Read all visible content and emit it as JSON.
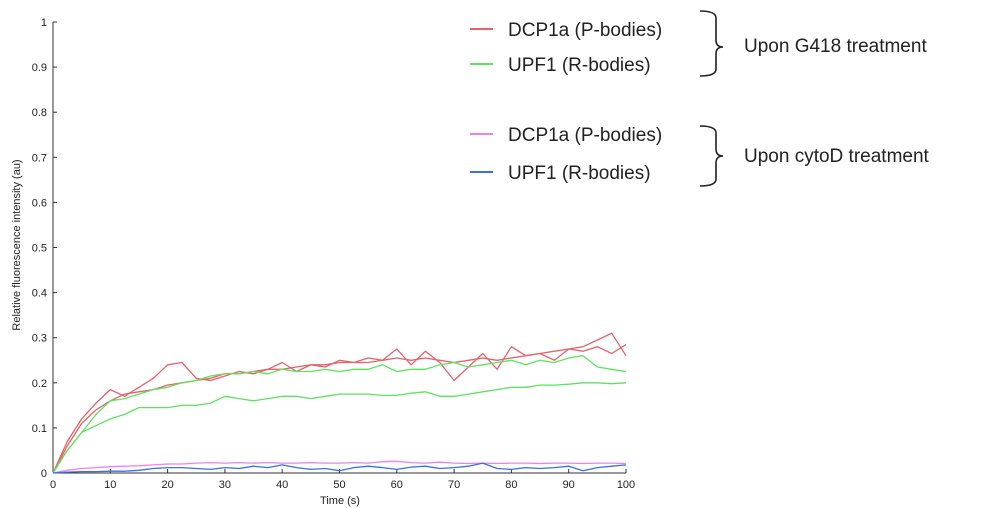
{
  "chart_data": {
    "type": "line",
    "xlabel": "Time (s)",
    "ylabel": "Relative fluorescence intensity (au)",
    "xlim": [
      0,
      100
    ],
    "ylim": [
      0,
      1
    ],
    "xticks": [
      "0",
      "10",
      "20",
      "30",
      "40",
      "50",
      "60",
      "70",
      "80",
      "90",
      "100"
    ],
    "yticks": [
      "0",
      "0.1",
      "0.2",
      "0.3",
      "0.4",
      "0.5",
      "0.6",
      "0.7",
      "0.8",
      "0.9",
      "1"
    ],
    "x": [
      0,
      2.5,
      5,
      7.5,
      10,
      12.5,
      15,
      17.5,
      20,
      22.5,
      25,
      27.5,
      30,
      32.5,
      35,
      37.5,
      40,
      42.5,
      45,
      47.5,
      50,
      52.5,
      55,
      57.5,
      60,
      62.5,
      65,
      67.5,
      70,
      72.5,
      75,
      77.5,
      80,
      82.5,
      85,
      87.5,
      90,
      92.5,
      95,
      97.5,
      100
    ],
    "grid": false,
    "legend_position": "top-right",
    "series": [
      {
        "name": "DCP1a (P-bodies)",
        "group": "g418",
        "color": "#e8616a",
        "values": [
          0,
          0.07,
          0.12,
          0.155,
          0.185,
          0.17,
          0.19,
          0.21,
          0.24,
          0.245,
          0.21,
          0.205,
          0.215,
          0.225,
          0.22,
          0.23,
          0.245,
          0.225,
          0.24,
          0.235,
          0.25,
          0.245,
          0.255,
          0.25,
          0.275,
          0.24,
          0.27,
          0.245,
          0.205,
          0.235,
          0.265,
          0.23,
          0.28,
          0.26,
          0.265,
          0.25,
          0.275,
          0.27,
          0.28,
          0.265,
          0.285
        ]
      },
      {
        "name": "",
        "group": "g418",
        "color": "#e8616a",
        "values": [
          0,
          0.06,
          0.11,
          0.14,
          0.16,
          0.175,
          0.18,
          0.185,
          0.195,
          0.2,
          0.205,
          0.21,
          0.22,
          0.22,
          0.225,
          0.23,
          0.23,
          0.235,
          0.24,
          0.24,
          0.245,
          0.245,
          0.245,
          0.25,
          0.255,
          0.25,
          0.255,
          0.25,
          0.245,
          0.25,
          0.255,
          0.25,
          0.255,
          0.26,
          0.265,
          0.27,
          0.275,
          0.28,
          0.295,
          0.31,
          0.26
        ]
      },
      {
        "name": "UPF1 (R-bodies)",
        "group": "g418",
        "color": "#5ee35e",
        "values": [
          0,
          0.05,
          0.09,
          0.13,
          0.16,
          0.165,
          0.175,
          0.185,
          0.19,
          0.2,
          0.205,
          0.215,
          0.22,
          0.22,
          0.225,
          0.22,
          0.23,
          0.225,
          0.225,
          0.23,
          0.225,
          0.23,
          0.23,
          0.24,
          0.225,
          0.23,
          0.23,
          0.24,
          0.245,
          0.235,
          0.24,
          0.245,
          0.25,
          0.24,
          0.25,
          0.245,
          0.255,
          0.26,
          0.235,
          0.23,
          0.225
        ]
      },
      {
        "name": "",
        "group": "g418",
        "color": "#5ee35e",
        "values": [
          0,
          0.05,
          0.09,
          0.105,
          0.12,
          0.13,
          0.145,
          0.145,
          0.145,
          0.15,
          0.15,
          0.155,
          0.17,
          0.165,
          0.16,
          0.165,
          0.17,
          0.17,
          0.165,
          0.17,
          0.175,
          0.175,
          0.175,
          0.172,
          0.172,
          0.177,
          0.18,
          0.17,
          0.17,
          0.175,
          0.18,
          0.185,
          0.19,
          0.19,
          0.195,
          0.195,
          0.197,
          0.2,
          0.2,
          0.198,
          0.2
        ]
      },
      {
        "name": "DCP1a (P-bodies)",
        "group": "cytod",
        "color": "#f17ff1",
        "values": [
          0,
          0.006,
          0.01,
          0.012,
          0.014,
          0.015,
          0.016,
          0.018,
          0.02,
          0.02,
          0.022,
          0.023,
          0.022,
          0.023,
          0.022,
          0.023,
          0.022,
          0.022,
          0.023,
          0.022,
          0.022,
          0.023,
          0.022,
          0.025,
          0.026,
          0.023,
          0.022,
          0.024,
          0.022,
          0.021,
          0.022,
          0.021,
          0.022,
          0.022,
          0.021,
          0.022,
          0.022,
          0.021,
          0.022,
          0.022,
          0.021
        ]
      },
      {
        "name": "UPF1 (R-bodies)",
        "group": "cytod",
        "color": "#3b6ee8",
        "values": [
          0,
          0.002,
          0.003,
          0.003,
          0.004,
          0.004,
          0.006,
          0.01,
          0.012,
          0.012,
          0.01,
          0.008,
          0.012,
          0.01,
          0.015,
          0.012,
          0.018,
          0.012,
          0.008,
          0.01,
          0.005,
          0.012,
          0.015,
          0.012,
          0.008,
          0.013,
          0.015,
          0.01,
          0.012,
          0.015,
          0.022,
          0.01,
          0.008,
          0.012,
          0.01,
          0.012,
          0.015,
          0.005,
          0.012,
          0.015,
          0.018
        ]
      }
    ]
  },
  "legend": {
    "g418": {
      "items": [
        {
          "label": "DCP1a (P-bodies)",
          "color": "#e8616a"
        },
        {
          "label": "UPF1 (R-bodies)",
          "color": "#5ee35e"
        }
      ],
      "group_label": "Upon G418 treatment"
    },
    "cytod": {
      "items": [
        {
          "label": "DCP1a (P-bodies)",
          "color": "#f17ff1"
        },
        {
          "label": "UPF1 (R-bodies)",
          "color": "#3b6ee8"
        }
      ],
      "group_label": "Upon cytoD treatment"
    }
  }
}
